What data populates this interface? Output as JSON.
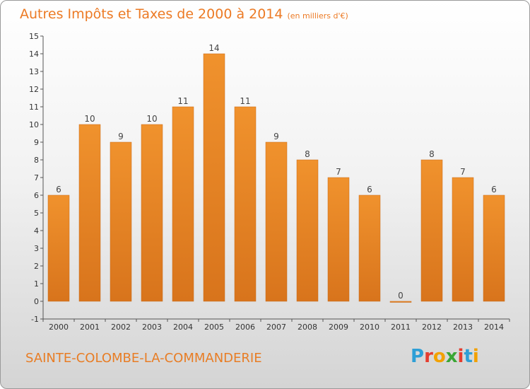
{
  "header": {
    "title": "Autres Impôts et Taxes de 2000 à 2014",
    "subtitle": "(en milliers d'€)"
  },
  "footer": {
    "commune": "SAINTE-COLOMBE-LA-COMMANDERIE",
    "logo": "Proxiti",
    "logo_colors": [
      "#2e9fd6",
      "#e53d2f",
      "#f2a100",
      "#3aa635",
      "#e53d2f",
      "#2e9fd6",
      "#f2a100"
    ]
  },
  "chart_data": {
    "type": "bar",
    "title": "Autres Impôts et Taxes de 2000 à 2014",
    "subtitle": "(en milliers d'€)",
    "categories": [
      "2000",
      "2001",
      "2002",
      "2003",
      "2004",
      "2005",
      "2006",
      "2007",
      "2008",
      "2009",
      "2010",
      "2011",
      "2012",
      "2013",
      "2014"
    ],
    "values": [
      6,
      10,
      9,
      10,
      11,
      14,
      11,
      9,
      8,
      7,
      6,
      0,
      8,
      7,
      6
    ],
    "data_labels": [
      "6",
      "10",
      "9",
      "10",
      "11",
      "14",
      "11",
      "9",
      "8",
      "7",
      "6",
      "0",
      "8",
      "7",
      "6"
    ],
    "ylim": [
      -1,
      15
    ],
    "yticks": [
      -1,
      0,
      1,
      2,
      3,
      4,
      5,
      6,
      7,
      8,
      9,
      10,
      11,
      12,
      13,
      14,
      15
    ],
    "ytick_labels": [
      "-1",
      "0",
      "1",
      "2",
      "3",
      "4",
      "5",
      "6",
      "7",
      "8",
      "9",
      "10",
      "11",
      "12",
      "13",
      "14",
      "15"
    ],
    "grid": false,
    "bar_color": "#f0922d",
    "bar_color_dark": "#d8741c",
    "xlabel": "",
    "ylabel": ""
  }
}
